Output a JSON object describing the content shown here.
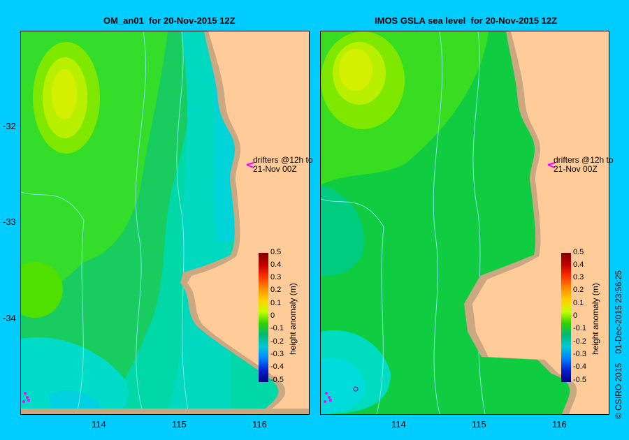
{
  "left_panel": {
    "title": "OM_an01  for 20-Nov-2015 12Z",
    "annotation_line1": "drifters @12h to",
    "annotation_line2": "21-Nov 00Z",
    "colorbar_label": "height anomaly (m)"
  },
  "right_panel": {
    "title": "IMOS GSLA sea level  for 20-Nov-2015 12Z",
    "annotation_line1": "drifters @12h to",
    "annotation_line2": "21-Nov 00Z",
    "colorbar_label": "height anomaly (m)"
  },
  "y_ticks": [
    "-32",
    "-33",
    "-34"
  ],
  "x_ticks": [
    "114",
    "115",
    "116"
  ],
  "colorbar_ticks": [
    "0.5",
    "0.4",
    "0.3",
    "0.2",
    "0.1",
    "0",
    "-0.1",
    "-0.2",
    "-0.3",
    "-0.4",
    "-0.5"
  ],
  "footer": "© CSIRO 2015    01-Dec-2015 23:56:25",
  "colors": {
    "background": "#00ccff",
    "land": "#ffcc99",
    "coast": "#c9a882",
    "drifter": "#ff00ff"
  }
}
